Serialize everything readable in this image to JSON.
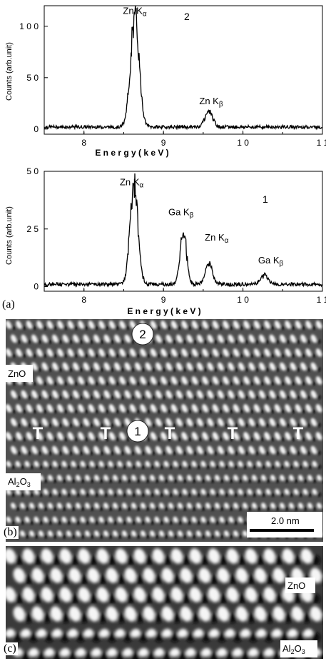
{
  "figure": {
    "panel_labels": [
      "(a)",
      "(b)",
      "(c)"
    ],
    "spectrum_labels": [
      "2",
      "1"
    ],
    "axis": {
      "xlabel": "E n e r g y  ( k e V )",
      "ylabel": "Counts (arb.unit)",
      "xticks": [
        "8",
        "9",
        "1 0",
        "1 1"
      ]
    },
    "panel_b": {
      "labels": {
        "zno": "ZnO",
        "al2o3_main": "Al",
        "al2o3_sub2": "2",
        "al2o3_o": "O",
        "al2o3_sub3": "3"
      },
      "markers": [
        "2",
        "1"
      ],
      "dislocation_symbol": "T",
      "scale_bar": "2.0 nm"
    },
    "panel_c": {
      "labels": {
        "zno": "ZnO",
        "al2o3_main": "Al",
        "al2o3_sub2": "2",
        "al2o3_o": "O",
        "al2o3_sub3": "3"
      }
    }
  },
  "chart_data": [
    {
      "type": "line",
      "name": "2",
      "xlim": [
        7.5,
        11
      ],
      "ylim": [
        -5,
        120
      ],
      "yticks": [
        "0",
        "5 0",
        "1 0 0"
      ],
      "ytick_values": [
        0,
        50,
        100
      ],
      "xtick_values": [
        8,
        9,
        10,
        11
      ],
      "peaks": [
        {
          "center": 8.64,
          "height": 105,
          "width": 0.055,
          "label": "Zn K",
          "sub": "α",
          "label_x": 8.64,
          "label_y": 112
        },
        {
          "center": 9.57,
          "height": 15,
          "width": 0.05,
          "label": "Zn K",
          "sub": "β",
          "label_x": 9.6,
          "label_y": 24
        }
      ],
      "background": 2
    },
    {
      "type": "line",
      "name": "1",
      "xlim": [
        7.5,
        11
      ],
      "ylim": [
        -2,
        50
      ],
      "yticks": [
        "0",
        "2 5",
        "5 0"
      ],
      "ytick_values": [
        0,
        25,
        50
      ],
      "xtick_values": [
        8,
        9,
        10,
        11
      ],
      "peaks": [
        {
          "center": 8.63,
          "height": 43,
          "width": 0.05,
          "label": "Zn K",
          "sub": "α",
          "label_x": 8.6,
          "label_y": 44
        },
        {
          "center": 9.25,
          "height": 23,
          "width": 0.04,
          "label": "Ga K",
          "sub": "β",
          "label_x": 9.22,
          "label_y": 31
        },
        {
          "center": 9.57,
          "height": 9,
          "width": 0.045,
          "label": "Zn K",
          "sub": "α",
          "label_x": 9.67,
          "label_y": 20
        },
        {
          "center": 10.27,
          "height": 4,
          "width": 0.05,
          "label": "Ga K",
          "sub": "β",
          "label_x": 10.35,
          "label_y": 10
        }
      ],
      "background": 1
    }
  ]
}
